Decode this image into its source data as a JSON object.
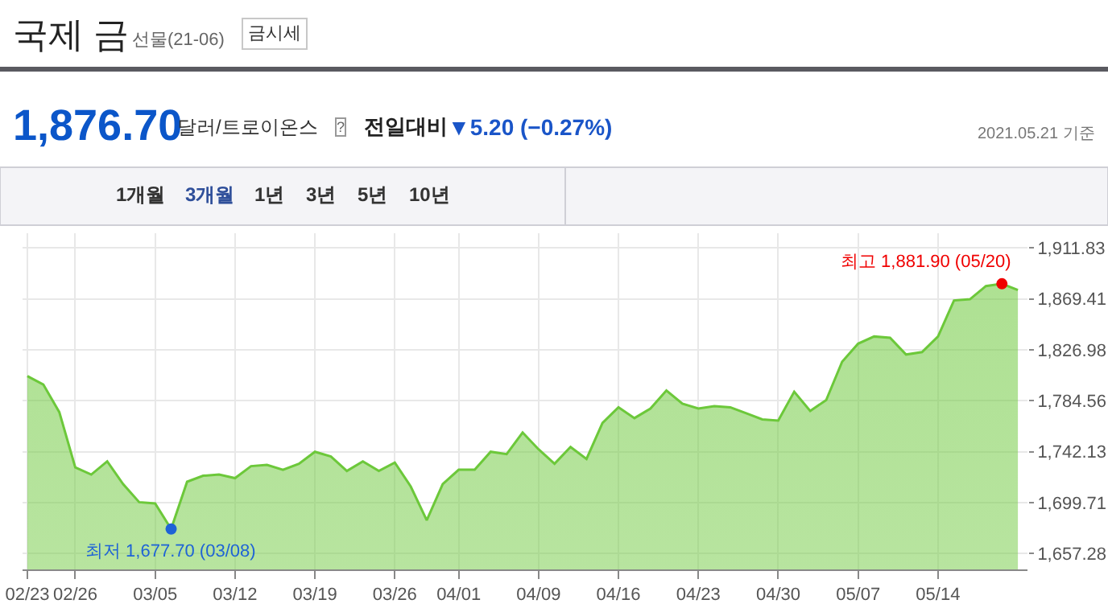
{
  "chart_data": {
    "type": "area",
    "title": "국제 금",
    "subtitle": "선물(21-06)",
    "categories": [
      "02/23",
      null,
      null,
      "02/26",
      null,
      null,
      null,
      null,
      "03/05",
      null,
      null,
      null,
      null,
      "03/12",
      null,
      null,
      null,
      null,
      "03/19",
      null,
      null,
      null,
      null,
      "03/26",
      null,
      null,
      null,
      "04/01",
      null,
      null,
      null,
      null,
      "04/09",
      null,
      null,
      null,
      null,
      "04/16",
      null,
      null,
      null,
      null,
      "04/23",
      null,
      null,
      null,
      null,
      "04/30",
      null,
      null,
      null,
      null,
      "05/07",
      null,
      null,
      null,
      null,
      "05/14",
      null,
      null,
      null,
      null,
      null
    ],
    "series": [
      {
        "color": "#6cc83a",
        "values": [
          1805,
          1798,
          1775,
          1729,
          1723,
          1734,
          1715,
          1700,
          1699,
          1677.7,
          1717,
          1722,
          1723,
          1720,
          1730,
          1731,
          1727,
          1732,
          1742,
          1738,
          1726,
          1734,
          1726,
          1733,
          1713,
          1685,
          1715,
          1727,
          1727,
          1742,
          1740,
          1758,
          1744,
          1732,
          1746,
          1736,
          1766,
          1779,
          1770,
          1778,
          1793,
          1782,
          1778,
          1780,
          1779,
          1774,
          1769,
          1768,
          1792,
          1776,
          1785,
          1817,
          1832,
          1838,
          1837,
          1823,
          1825,
          1838,
          1868,
          1869,
          1880,
          1881.9,
          1876.7
        ]
      }
    ],
    "ylim": [
      1644,
      1924
    ],
    "yticks": [
      {
        "value": 1657.28,
        "label": "1,657.28"
      },
      {
        "value": 1699.71,
        "label": "1,699.71"
      },
      {
        "value": 1742.13,
        "label": "1,742.13"
      },
      {
        "value": 1784.56,
        "label": "1,784.56"
      },
      {
        "value": 1826.98,
        "label": "1,826.98"
      },
      {
        "value": 1869.41,
        "label": "1,869.41"
      },
      {
        "value": 1911.83,
        "label": "1,911.83"
      }
    ],
    "grid": true,
    "legend": false,
    "marker": "none",
    "line_style": "solid",
    "annotations": [
      "금시세",
      "1,876.70",
      "달러/트로이온스",
      "?",
      "전일대비",
      "▼5.20 (−0.27%)",
      "2021.05.21 기준",
      "1개월",
      "3개월",
      "1년",
      "3년",
      "5년",
      "10년",
      "최저 1,677.70 (03/08)",
      "최고 1,881.90 (05/20)"
    ]
  }
}
